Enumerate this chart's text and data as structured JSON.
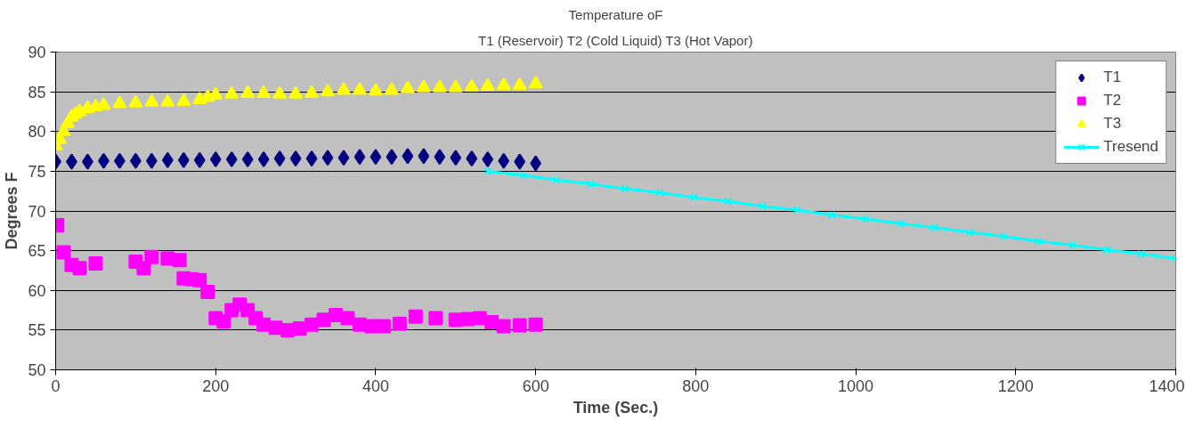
{
  "chart_data": {
    "type": "scatter",
    "title": "Temperature oF",
    "subtitle": "T1 (Reservoir) T2 (Cold Liquid) T3 (Hot Vapor)",
    "xlabel": "Time (Sec.)",
    "ylabel": "Degrees F",
    "xlim": [
      0,
      1400
    ],
    "xticks": [
      0,
      200,
      400,
      600,
      800,
      1000,
      1200,
      1400
    ],
    "ylim": [
      50,
      90
    ],
    "yticks": [
      50,
      55,
      60,
      65,
      70,
      75,
      80,
      85,
      90
    ],
    "grid": "y",
    "legend": "top right",
    "series": [
      {
        "name": "T1",
        "color": "#000080",
        "marker": "diamond",
        "x": [
          0,
          20,
          40,
          60,
          80,
          100,
          120,
          140,
          160,
          180,
          200,
          220,
          240,
          260,
          280,
          300,
          320,
          340,
          360,
          380,
          400,
          420,
          440,
          460,
          480,
          500,
          520,
          540,
          560,
          580,
          600
        ],
        "values": [
          76.2,
          76.2,
          76.2,
          76.3,
          76.3,
          76.3,
          76.3,
          76.4,
          76.4,
          76.4,
          76.5,
          76.5,
          76.5,
          76.5,
          76.6,
          76.6,
          76.6,
          76.7,
          76.7,
          76.8,
          76.8,
          76.8,
          76.9,
          76.9,
          76.8,
          76.7,
          76.6,
          76.5,
          76.3,
          76.2,
          76.0
        ]
      },
      {
        "name": "T2",
        "color": "#ff00ff",
        "marker": "square",
        "x": [
          2,
          10,
          20,
          30,
          50,
          100,
          110,
          120,
          140,
          155,
          160,
          170,
          180,
          190,
          200,
          210,
          220,
          230,
          240,
          250,
          260,
          275,
          290,
          305,
          320,
          335,
          350,
          365,
          380,
          395,
          410,
          430,
          450,
          475,
          500,
          515,
          530,
          545,
          560,
          580,
          600
        ],
        "values": [
          68.2,
          64.8,
          63.2,
          62.8,
          63.4,
          63.6,
          62.8,
          64.2,
          64,
          63.8,
          61.5,
          61.4,
          61.3,
          59.8,
          56.5,
          56.1,
          57.5,
          58.2,
          57.5,
          56.5,
          55.7,
          55.3,
          55.0,
          55.2,
          55.7,
          56.3,
          56.9,
          56.5,
          55.7,
          55.5,
          55.5,
          55.8,
          56.7,
          56.5,
          56.3,
          56.4,
          56.5,
          56.0,
          55.5,
          55.6,
          55.7
        ]
      },
      {
        "name": "T3",
        "color": "#ffff00",
        "marker": "triangle",
        "x": [
          0,
          5,
          10,
          15,
          20,
          25,
          30,
          40,
          50,
          60,
          80,
          100,
          120,
          140,
          160,
          180,
          190,
          200,
          220,
          240,
          260,
          280,
          300,
          320,
          340,
          360,
          380,
          400,
          420,
          440,
          460,
          480,
          500,
          520,
          540,
          560,
          580,
          600
        ],
        "values": [
          78.2,
          79,
          80,
          81,
          81.8,
          82.2,
          82.5,
          82.9,
          83.1,
          83.3,
          83.5,
          83.6,
          83.7,
          83.7,
          83.8,
          84.0,
          84.3,
          84.6,
          84.7,
          84.8,
          84.8,
          84.7,
          84.7,
          84.8,
          85.0,
          85.2,
          85.2,
          85.1,
          85.2,
          85.4,
          85.5,
          85.5,
          85.5,
          85.6,
          85.7,
          85.8,
          85.8,
          86.0
        ]
      },
      {
        "name": "Tresend",
        "type": "line",
        "color": "#00ffff",
        "marker": "cross",
        "x": [
          540,
          583,
          626,
          669,
          712,
          755,
          798,
          841,
          884,
          927,
          970,
          1013,
          1056,
          1099,
          1142,
          1185,
          1228,
          1271,
          1314,
          1357,
          1400
        ],
        "values": [
          75,
          74.5,
          73.9,
          73.4,
          72.8,
          72.3,
          71.7,
          71.2,
          70.6,
          70.1,
          69.5,
          69.0,
          68.4,
          67.9,
          67.3,
          66.8,
          66.2,
          65.7,
          65.1,
          64.6,
          64.0
        ]
      }
    ]
  }
}
